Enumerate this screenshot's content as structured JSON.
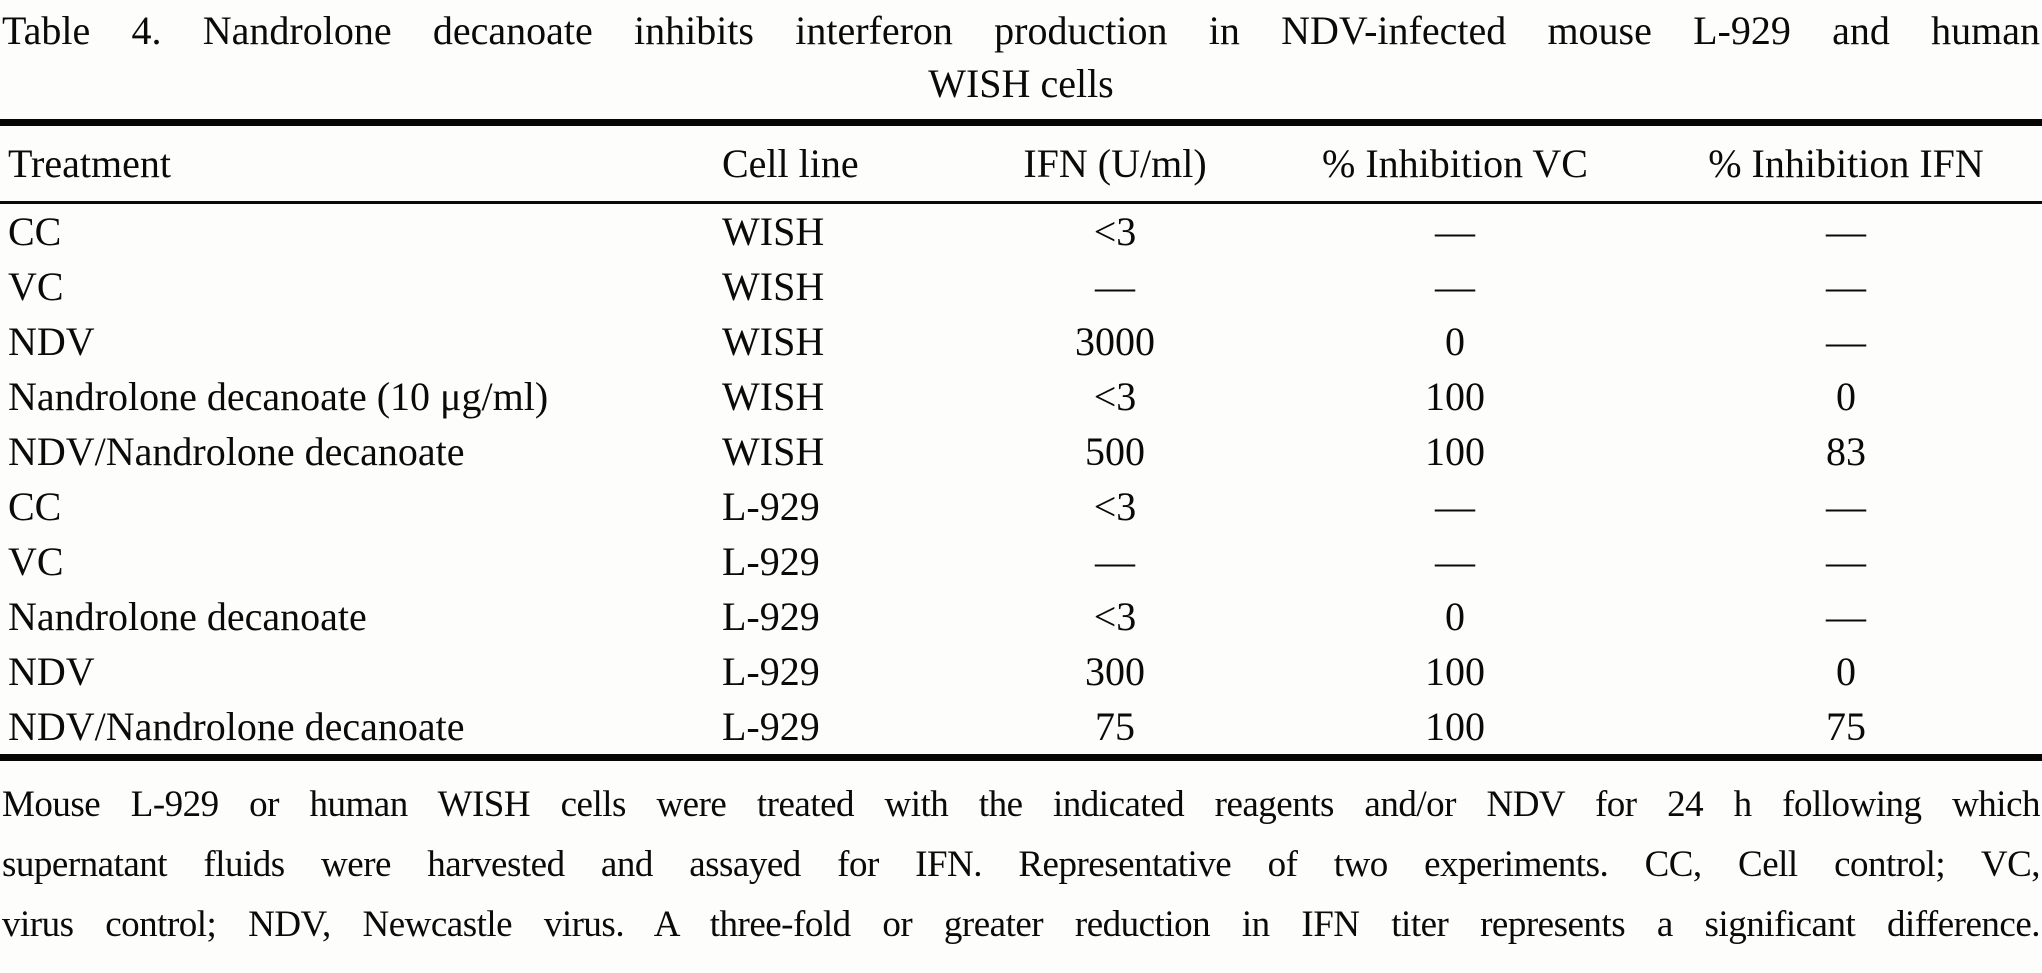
{
  "title": {
    "line1": "Table 4. Nandrolone decanoate inhibits interferon production in NDV-infected mouse L-929 and human",
    "line2": "WISH cells"
  },
  "table": {
    "columns": [
      "Treatment",
      "Cell line",
      "IFN (U/ml)",
      "% Inhibition VC",
      "% Inhibition IFN"
    ],
    "rows": [
      {
        "treatment": "CC",
        "cell_line": "WISH",
        "ifn": "<3",
        "inhibition_vc": "—",
        "inhibition_ifn": "—"
      },
      {
        "treatment": "VC",
        "cell_line": "WISH",
        "ifn": "—",
        "inhibition_vc": "—",
        "inhibition_ifn": "—"
      },
      {
        "treatment": "NDV",
        "cell_line": "WISH",
        "ifn": "3000",
        "inhibition_vc": "0",
        "inhibition_ifn": "—"
      },
      {
        "treatment": "Nandrolone decanoate (10 μg/ml)",
        "cell_line": "WISH",
        "ifn": "<3",
        "inhibition_vc": "100",
        "inhibition_ifn": "0"
      },
      {
        "treatment": "NDV/Nandrolone decanoate",
        "cell_line": "WISH",
        "ifn": "500",
        "inhibition_vc": "100",
        "inhibition_ifn": "83"
      },
      {
        "treatment": "CC",
        "cell_line": "L-929",
        "ifn": "<3",
        "inhibition_vc": "—",
        "inhibition_ifn": "—"
      },
      {
        "treatment": "VC",
        "cell_line": "L-929",
        "ifn": "—",
        "inhibition_vc": "—",
        "inhibition_ifn": "—"
      },
      {
        "treatment": "Nandrolone decanoate",
        "cell_line": "L-929",
        "ifn": "<3",
        "inhibition_vc": "0",
        "inhibition_ifn": "—"
      },
      {
        "treatment": "NDV",
        "cell_line": "L-929",
        "ifn": "300",
        "inhibition_vc": "100",
        "inhibition_ifn": "0"
      },
      {
        "treatment": "NDV/Nandrolone decanoate",
        "cell_line": "L-929",
        "ifn": "75",
        "inhibition_vc": "100",
        "inhibition_ifn": "75"
      }
    ]
  },
  "footnote": {
    "lines": [
      "Mouse L-929 or human WISH cells were treated with the indicated reagents and/or NDV for 24 h following which",
      "supernatant fluids were harvested and assayed for IFN. Representative of two experiments. CC, Cell control; VC,",
      "virus control; NDV, Newcastle virus. A three-fold or greater reduction in IFN titer represents a significant difference."
    ]
  },
  "colors": {
    "ink": "#0a0a0a",
    "background": "#fdfdfc"
  }
}
